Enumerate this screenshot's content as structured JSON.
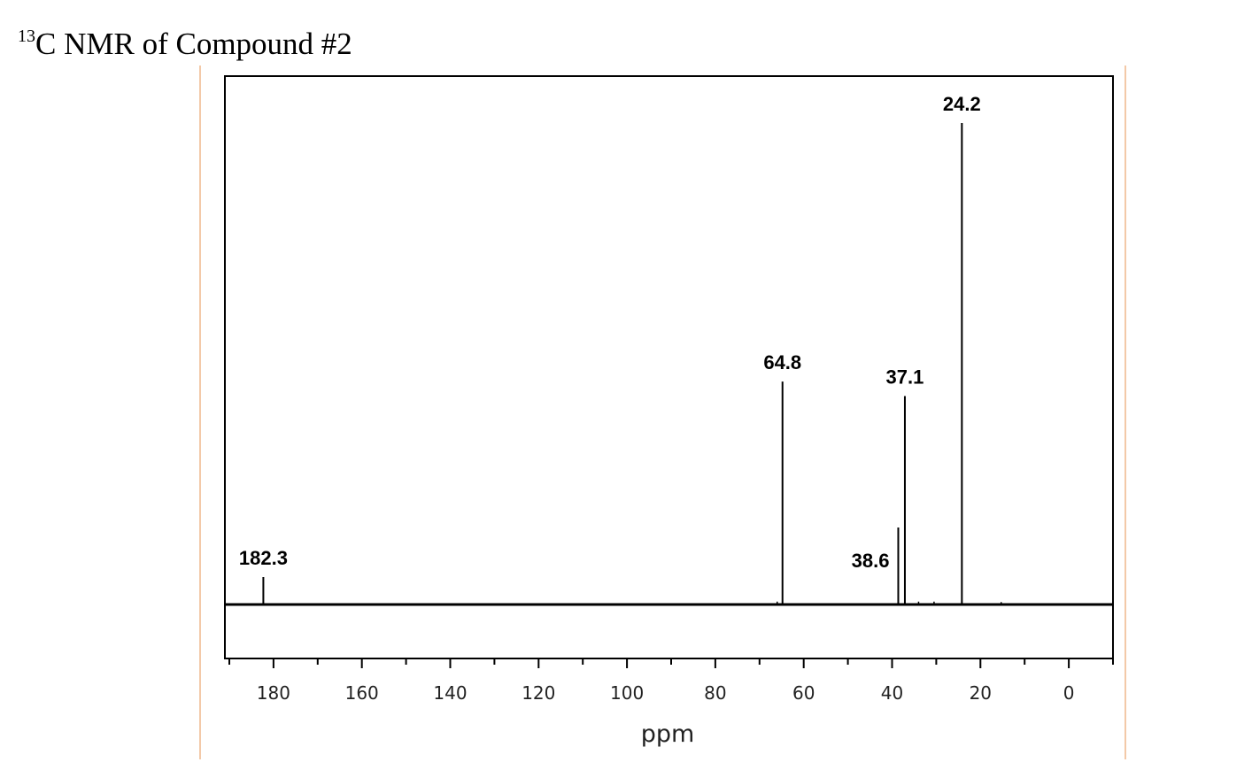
{
  "title": {
    "sup": "13",
    "text": "C NMR of Compound #2"
  },
  "chart_data": {
    "type": "line",
    "title": "13C NMR of Compound #2",
    "xlabel": "ppm",
    "ylabel": "",
    "xlim": [
      191,
      -10
    ],
    "x_reversed": true,
    "x_ticks": [
      180,
      160,
      140,
      120,
      100,
      80,
      60,
      40,
      20,
      0
    ],
    "x_minor_step": 10,
    "grid": false,
    "peaks": [
      {
        "ppm": 182.3,
        "intensity": 0.057,
        "label": "182.3"
      },
      {
        "ppm": 64.8,
        "intensity": 0.463,
        "label": "64.8"
      },
      {
        "ppm": 38.6,
        "intensity": 0.16,
        "label": "38.6"
      },
      {
        "ppm": 37.1,
        "intensity": 0.433,
        "label": "37.1"
      },
      {
        "ppm": 24.2,
        "intensity": 1.0,
        "label": "24.2"
      }
    ],
    "minor_peaks": [
      {
        "ppm": 66.0,
        "intensity": 0.006
      },
      {
        "ppm": 34.0,
        "intensity": 0.006
      },
      {
        "ppm": 30.5,
        "intensity": 0.006
      },
      {
        "ppm": 15.3,
        "intensity": 0.005
      }
    ]
  }
}
